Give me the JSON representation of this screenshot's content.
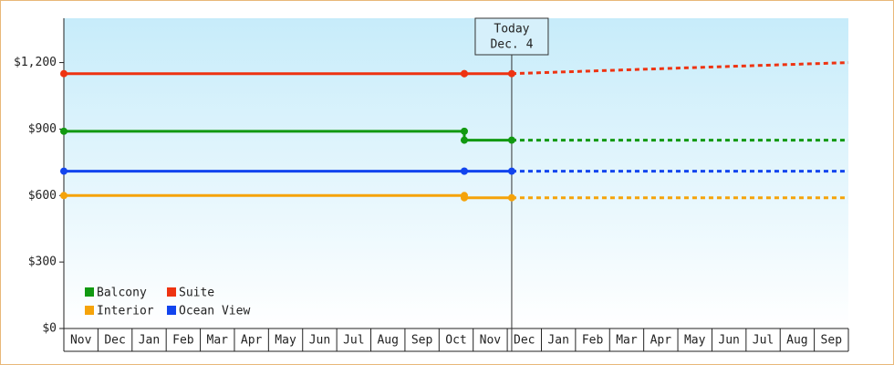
{
  "chart_data": {
    "type": "line",
    "categories": [
      "Nov",
      "Dec",
      "Jan",
      "Feb",
      "Mar",
      "Apr",
      "May",
      "Jun",
      "Jul",
      "Aug",
      "Sep",
      "Oct",
      "Nov",
      "Dec",
      "Jan",
      "Feb",
      "Mar",
      "Apr",
      "May",
      "Jun",
      "Jul",
      "Aug",
      "Sep"
    ],
    "xlim": [
      0,
      23
    ],
    "x": [
      0,
      11.74,
      11.74,
      13.13,
      18,
      23
    ],
    "ylim": [
      0,
      1400
    ],
    "yticks": [
      {
        "value": 0,
        "label": "$0"
      },
      {
        "value": 300,
        "label": "$300"
      },
      {
        "value": 600,
        "label": "$600"
      },
      {
        "value": 900,
        "label": "$900"
      },
      {
        "value": 1200,
        "label": "$1,200"
      }
    ],
    "today": {
      "x": 13.13,
      "label": [
        "Today",
        "Dec. 4"
      ]
    },
    "legend": "lower left",
    "series": [
      {
        "name": "Balcony",
        "color": "#119911",
        "values": [
          890,
          890,
          850,
          850,
          850,
          850
        ]
      },
      {
        "name": "Suite",
        "color": "#ee3311",
        "values": [
          1150,
          1150,
          1150,
          1150,
          1175,
          1200
        ]
      },
      {
        "name": "Interior",
        "color": "#f5a30a",
        "values": [
          600,
          600,
          590,
          590,
          590,
          590
        ]
      },
      {
        "name": "Ocean View",
        "color": "#1144ee",
        "values": [
          710,
          710,
          710,
          710,
          710,
          710
        ]
      }
    ]
  }
}
